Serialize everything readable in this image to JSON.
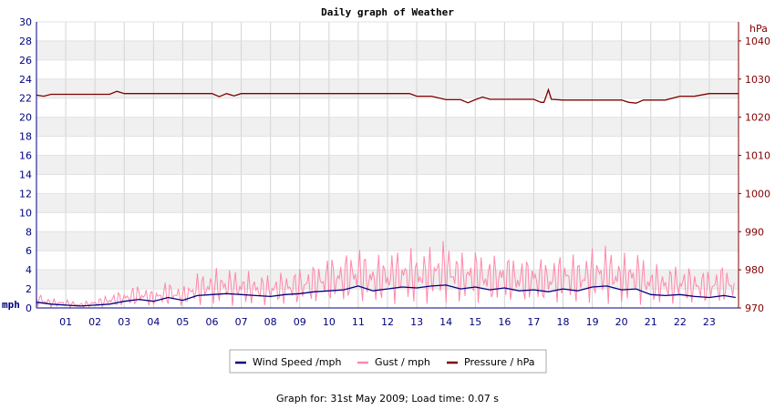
{
  "chart_data": {
    "type": "line",
    "title": "Daily graph of Weather",
    "y_left": {
      "unit": "mph",
      "range": [
        0,
        30
      ],
      "ticks": [
        "0",
        "2",
        "4",
        "6",
        "8",
        "10",
        "12",
        "14",
        "16",
        "18",
        "20",
        "22",
        "24",
        "26",
        "28",
        "30"
      ]
    },
    "y_right": {
      "unit": "hPa",
      "range": [
        970,
        1045
      ],
      "ticks": [
        "970",
        "980",
        "990",
        "1000",
        "1010",
        "1020",
        "1030",
        "1040"
      ]
    },
    "x": {
      "range": [
        0,
        24
      ],
      "ticks": [
        "01",
        "02",
        "03",
        "04",
        "05",
        "06",
        "07",
        "08",
        "09",
        "10",
        "11",
        "12",
        "13",
        "14",
        "15",
        "16",
        "17",
        "18",
        "19",
        "20",
        "21",
        "22",
        "23"
      ]
    },
    "grid": true,
    "legend_position": "bottom",
    "series": [
      {
        "name": "Wind Speed /mph",
        "axis": "left",
        "color": "#000080",
        "x": [
          0,
          0.5,
          1,
          1.5,
          2,
          2.5,
          3,
          3.5,
          4,
          4.5,
          5,
          5.5,
          6,
          6.5,
          7,
          7.5,
          8,
          8.5,
          9,
          9.5,
          10,
          10.5,
          11,
          11.5,
          12,
          12.5,
          13,
          13.5,
          14,
          14.5,
          15,
          15.5,
          16,
          16.5,
          17,
          17.5,
          18,
          18.5,
          19,
          19.5,
          20,
          20.5,
          21,
          21.5,
          22,
          22.5,
          23,
          23.5,
          23.9
        ],
        "y": [
          0.6,
          0.4,
          0.3,
          0.2,
          0.3,
          0.4,
          0.7,
          0.9,
          0.7,
          1.1,
          0.8,
          1.3,
          1.4,
          1.5,
          1.4,
          1.3,
          1.2,
          1.4,
          1.5,
          1.7,
          1.8,
          1.9,
          2.3,
          1.8,
          2.0,
          2.2,
          2.1,
          2.3,
          2.4,
          2.0,
          2.2,
          1.9,
          2.1,
          1.8,
          1.9,
          1.7,
          2.0,
          1.8,
          2.2,
          2.3,
          1.9,
          2.0,
          1.4,
          1.3,
          1.4,
          1.2,
          1.1,
          1.3,
          1.1
        ]
      },
      {
        "name": "Gust / mph",
        "axis": "left",
        "color": "#ff88aa",
        "x": [
          0,
          0.5,
          1,
          1.5,
          2,
          2.5,
          3,
          3.5,
          4,
          4.5,
          5,
          5.5,
          6,
          6.5,
          7,
          7.5,
          8,
          8.5,
          9,
          9.5,
          10,
          10.5,
          11,
          11.5,
          12,
          12.5,
          13,
          13.5,
          14,
          14.5,
          15,
          15.5,
          16,
          16.5,
          17,
          17.5,
          18,
          18.5,
          19,
          19.5,
          20,
          20.5,
          21,
          21.5,
          22,
          22.5,
          23,
          23.5,
          23.9
        ],
        "y": [
          1.0,
          0.5,
          0.5,
          0.3,
          0.5,
          0.8,
          1.0,
          1.4,
          1.0,
          1.6,
          1.2,
          2.0,
          2.2,
          2.3,
          2.1,
          2.0,
          1.9,
          2.1,
          2.3,
          2.6,
          3.0,
          3.1,
          3.6,
          2.9,
          3.2,
          3.4,
          3.3,
          3.5,
          4.0,
          3.1,
          3.4,
          3.0,
          3.2,
          2.9,
          3.0,
          2.8,
          3.2,
          3.0,
          3.4,
          3.6,
          3.0,
          3.3,
          2.5,
          2.4,
          2.5,
          2.3,
          2.2,
          2.6,
          2.2
        ],
        "max": 7
      },
      {
        "name": "Pressure / hPa",
        "axis": "right",
        "color": "#800000",
        "x": [
          0,
          0.25,
          0.5,
          1,
          1.5,
          2,
          2.5,
          2.75,
          3,
          3.5,
          4,
          5,
          5.5,
          6,
          6.25,
          6.5,
          6.75,
          7,
          8,
          9,
          10,
          11,
          12,
          12.75,
          13,
          13.5,
          14,
          14.5,
          14.75,
          15,
          15.25,
          15.5,
          16,
          16.5,
          17,
          17.25,
          17.35,
          17.5,
          17.6,
          18,
          18.5,
          19,
          19.5,
          20,
          20.25,
          20.5,
          20.75,
          21,
          21.5,
          22,
          22.5,
          23,
          23.5,
          24
        ],
        "y": [
          1025.8,
          1025.5,
          1026.0,
          1026.0,
          1026.0,
          1026.0,
          1026.0,
          1026.8,
          1026.2,
          1026.2,
          1026.2,
          1026.2,
          1026.2,
          1026.2,
          1025.4,
          1026.2,
          1025.6,
          1026.2,
          1026.2,
          1026.2,
          1026.2,
          1026.2,
          1026.2,
          1026.2,
          1025.5,
          1025.5,
          1024.6,
          1024.6,
          1023.8,
          1024.6,
          1025.3,
          1024.7,
          1024.7,
          1024.7,
          1024.7,
          1023.9,
          1023.9,
          1027.2,
          1024.7,
          1024.5,
          1024.5,
          1024.5,
          1024.5,
          1024.5,
          1023.9,
          1023.7,
          1024.5,
          1024.5,
          1024.5,
          1025.5,
          1025.5,
          1026.2,
          1026.2,
          1026.2
        ]
      }
    ]
  },
  "footer": {
    "text": "Graph for: 31st May 2009; Load time: 0.07 s"
  }
}
